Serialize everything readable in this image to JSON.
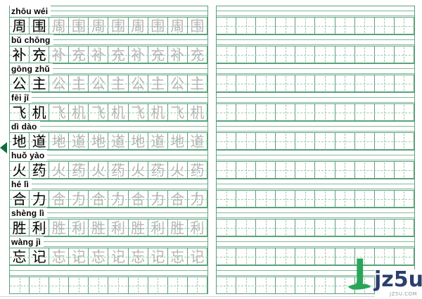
{
  "colors": {
    "grid_border": "#5aa078",
    "grid_dashed": "#a0c8af",
    "pinyin_line": "#82b99b",
    "example_char": "#000000",
    "trace_char": "#b5b5b5",
    "marker_arrow": "#0c6e3f",
    "logo_green": "#2aa558",
    "logo_navy": "#2b3e6d",
    "logo_gray": "#959a9f"
  },
  "worksheet": {
    "left_page": {
      "cells_per_row": 10,
      "example_cells": 2,
      "trace_cells": 8,
      "rows": [
        {
          "pinyin": "zhōu wéi",
          "chars": [
            "周",
            "围"
          ]
        },
        {
          "pinyin": "bǔ chōng",
          "chars": [
            "补",
            "充"
          ]
        },
        {
          "pinyin": "gōng zhǔ",
          "chars": [
            "公",
            "主"
          ]
        },
        {
          "pinyin": "fēi jī",
          "chars": [
            "飞",
            "机"
          ]
        },
        {
          "pinyin": "dì dào",
          "chars": [
            "地",
            "道"
          ]
        },
        {
          "pinyin": "huǒ yào",
          "chars": [
            "火",
            "药"
          ]
        },
        {
          "pinyin": "hé lì",
          "chars": [
            "合",
            "力"
          ]
        },
        {
          "pinyin": "shèng lì",
          "chars": [
            "胜",
            "利"
          ]
        },
        {
          "pinyin": "wàng jì",
          "chars": [
            "忘",
            "记"
          ]
        },
        {
          "pinyin": "",
          "chars": null
        }
      ]
    },
    "right_page": {
      "cells_per_row": 10,
      "row_count": 10
    }
  },
  "marker": {
    "shape": "left-pointing-triangle",
    "at_row_pinyin": "dì dào"
  },
  "logo": {
    "initial": "J",
    "name": "jz5u",
    "domain": "JZ5U.COM"
  }
}
